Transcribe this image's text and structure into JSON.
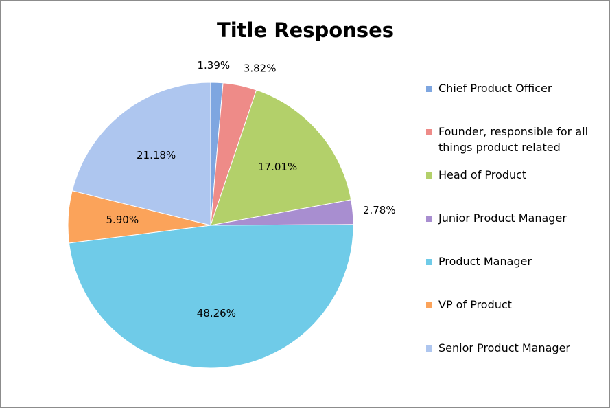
{
  "chart_data": {
    "type": "pie",
    "title": "Title Responses",
    "categories": [
      "Chief Product Officer",
      "Founder, responsible for all things product related",
      "Head of Product",
      "Junior Product Manager",
      "Product Manager",
      "VP of Product",
      "Senior Product Manager"
    ],
    "values": [
      1.39,
      3.82,
      17.01,
      2.78,
      48.26,
      5.9,
      21.18
    ],
    "value_labels": [
      "1.39%",
      "3.82%",
      "17.01%",
      "2.78%",
      "48.26%",
      "5.90%",
      "21.18%"
    ],
    "colors": [
      "#7ea6e0",
      "#ee8b88",
      "#b3d06a",
      "#a88ed0",
      "#6fcbe8",
      "#fba35a",
      "#aec6ef"
    ],
    "legend": "right"
  }
}
